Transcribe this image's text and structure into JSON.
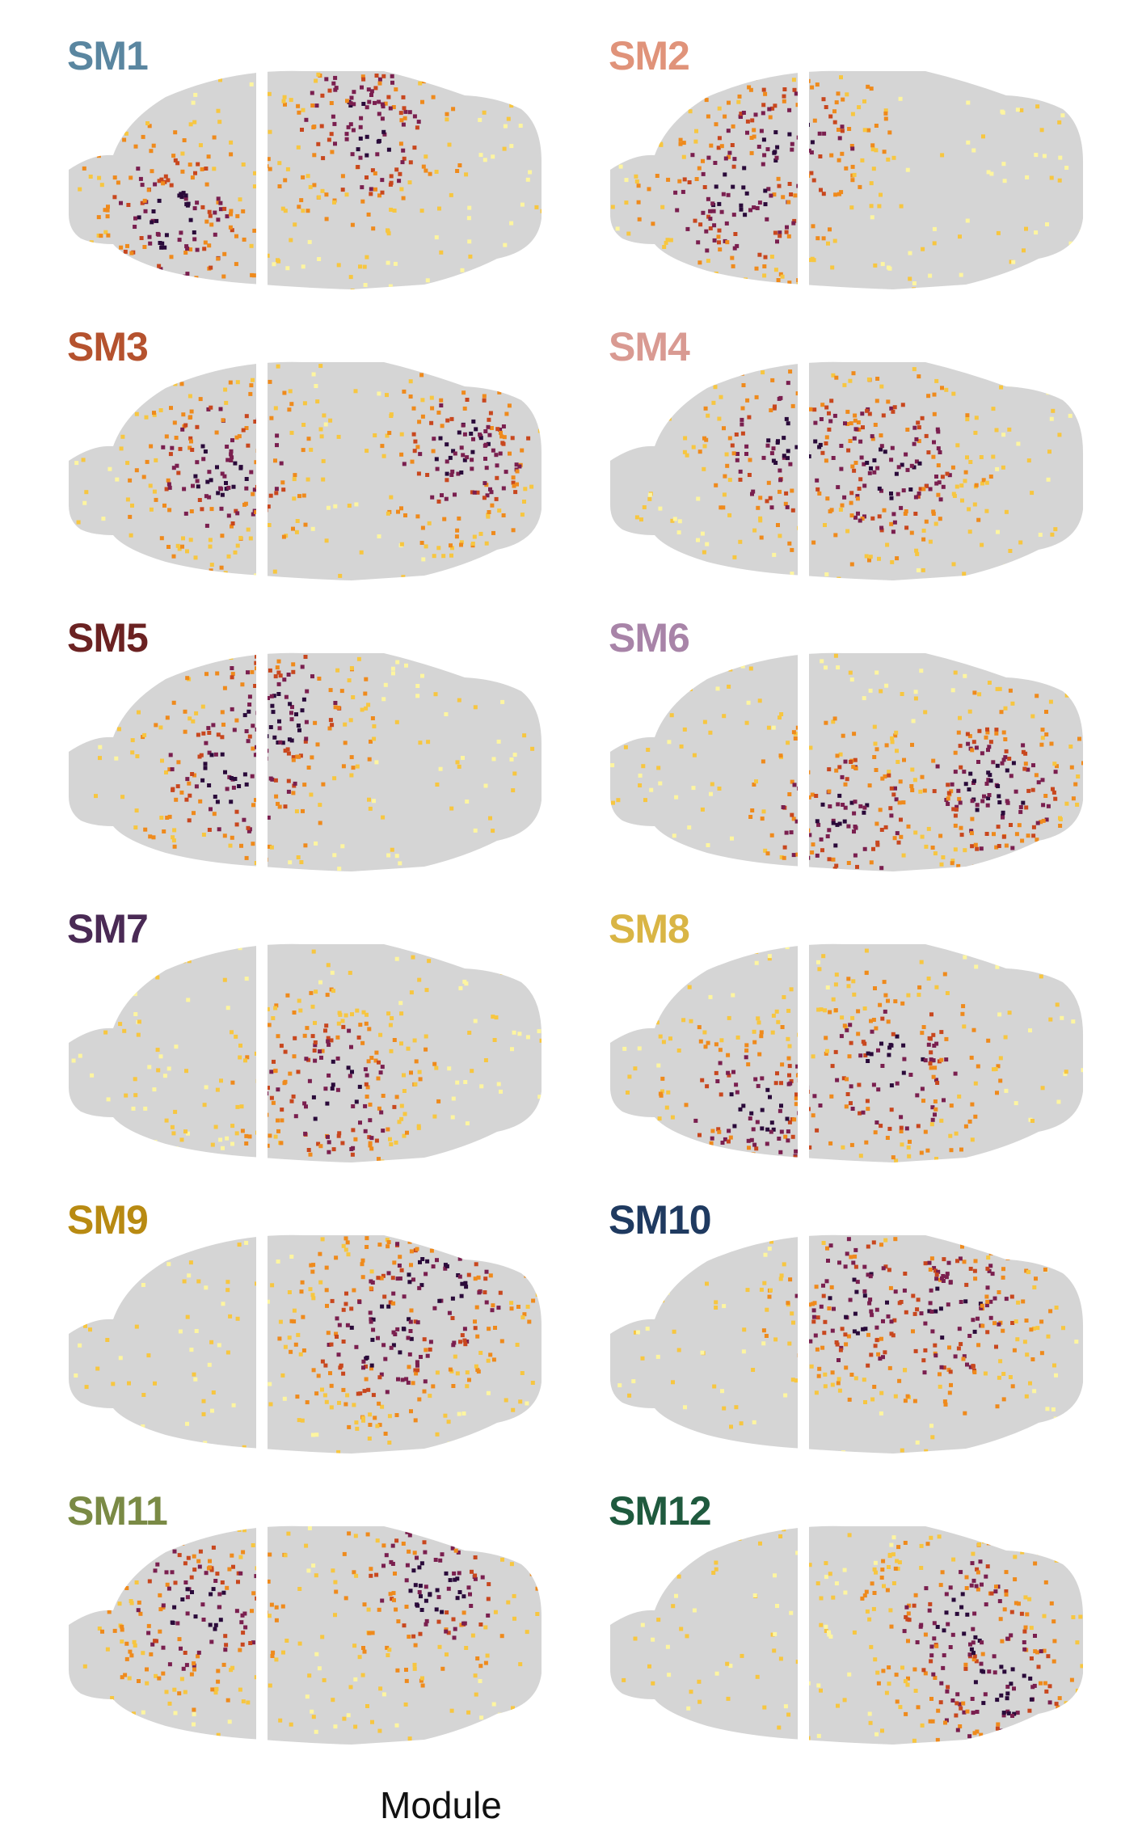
{
  "panels": [
    {
      "label": "SM1",
      "color": "#5a86a0"
    },
    {
      "label": "SM2",
      "color": "#e0937a"
    },
    {
      "label": "SM3",
      "color": "#b5522e"
    },
    {
      "label": "SM4",
      "color": "#d99a92"
    },
    {
      "label": "SM5",
      "color": "#6b2222"
    },
    {
      "label": "SM6",
      "color": "#a884a8"
    },
    {
      "label": "SM7",
      "color": "#4a2a55"
    },
    {
      "label": "SM8",
      "color": "#d9b545"
    },
    {
      "label": "SM9",
      "color": "#b88a12"
    },
    {
      "label": "SM10",
      "color": "#1f3a60"
    },
    {
      "label": "SM11",
      "color": "#7a8a45"
    },
    {
      "label": "SM12",
      "color": "#1f5a3e"
    }
  ],
  "footer_text": "Module",
  "colormap": [
    "#fdf5a0",
    "#f7c640",
    "#ef8a1c",
    "#c8471e",
    "#7a1f4f",
    "#2a0a3a"
  ],
  "background_tissue_color": "#d5d5d5"
}
